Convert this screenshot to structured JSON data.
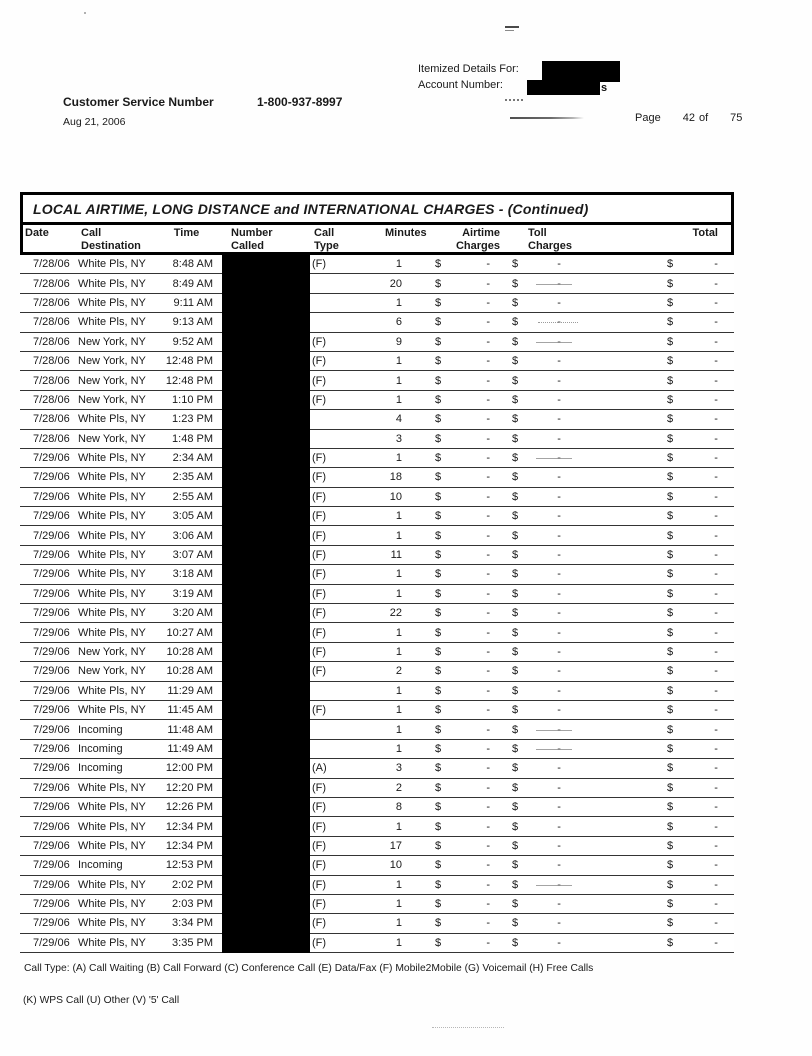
{
  "header": {
    "customer_service_label": "Customer Service Number",
    "customer_service_number": "1-800-937-8997",
    "statement_date": "Aug 21, 2006",
    "itemized_details_label": "Itemized Details For:",
    "account_number_label": "Account Number:",
    "redaction_overflow": "s",
    "page_label": "Page",
    "page_number": "42",
    "of_label": "of",
    "page_total": "75"
  },
  "table": {
    "title": "LOCAL AIRTIME, LONG DISTANCE and INTERNATIONAL CHARGES  - (Continued)",
    "currency_symbol": "$",
    "columns": {
      "date": "Date",
      "destination": "Call Destination",
      "time": "Time",
      "number_called": "Number Called",
      "call_type": "Call Type",
      "minutes": "Minutes",
      "airtime": "Airtime Charges",
      "toll": "Toll Charges",
      "total": "Total"
    },
    "rows": [
      {
        "date": "7/28/06",
        "destination": "White Pls, NY",
        "time": "8:48 AM",
        "call_type": "(F)",
        "minutes": 1,
        "airtime": "-",
        "toll": "-",
        "total": "-"
      },
      {
        "date": "7/28/06",
        "destination": "White Pls, NY",
        "time": "8:49 AM",
        "call_type": "",
        "minutes": 20,
        "airtime": "-",
        "toll": "-",
        "total": "-"
      },
      {
        "date": "7/28/06",
        "destination": "White Pls, NY",
        "time": "9:11 AM",
        "call_type": "",
        "minutes": 1,
        "airtime": "-",
        "toll": "-",
        "total": "-"
      },
      {
        "date": "7/28/06",
        "destination": "White Pls, NY",
        "time": "9:13 AM",
        "call_type": "",
        "minutes": 6,
        "airtime": "-",
        "toll": "-",
        "total": "-"
      },
      {
        "date": "7/28/06",
        "destination": "New York, NY",
        "time": "9:52 AM",
        "call_type": "(F)",
        "minutes": 9,
        "airtime": "-",
        "toll": "-",
        "total": "-"
      },
      {
        "date": "7/28/06",
        "destination": "New York, NY",
        "time": "12:48 PM",
        "call_type": "(F)",
        "minutes": 1,
        "airtime": "-",
        "toll": "-",
        "total": "-"
      },
      {
        "date": "7/28/06",
        "destination": "New York, NY",
        "time": "12:48 PM",
        "call_type": "(F)",
        "minutes": 1,
        "airtime": "-",
        "toll": "-",
        "total": "-"
      },
      {
        "date": "7/28/06",
        "destination": "New York, NY",
        "time": "1:10 PM",
        "call_type": "(F)",
        "minutes": 1,
        "airtime": "-",
        "toll": "-",
        "total": "-"
      },
      {
        "date": "7/28/06",
        "destination": "White Pls, NY",
        "time": "1:23 PM",
        "call_type": "",
        "minutes": 4,
        "airtime": "-",
        "toll": "-",
        "total": "-"
      },
      {
        "date": "7/28/06",
        "destination": "New York, NY",
        "time": "1:48 PM",
        "call_type": "",
        "minutes": 3,
        "airtime": "-",
        "toll": "-",
        "total": "-"
      },
      {
        "date": "7/29/06",
        "destination": "White Pls, NY",
        "time": "2:34 AM",
        "call_type": "(F)",
        "minutes": 1,
        "airtime": "-",
        "toll": "-",
        "total": "-"
      },
      {
        "date": "7/29/06",
        "destination": "White Pls, NY",
        "time": "2:35 AM",
        "call_type": "(F)",
        "minutes": 18,
        "airtime": "-",
        "toll": "-",
        "total": "-"
      },
      {
        "date": "7/29/06",
        "destination": "White Pls, NY",
        "time": "2:55 AM",
        "call_type": "(F)",
        "minutes": 10,
        "airtime": "-",
        "toll": "-",
        "total": "-"
      },
      {
        "date": "7/29/06",
        "destination": "White Pls, NY",
        "time": "3:05 AM",
        "call_type": "(F)",
        "minutes": 1,
        "airtime": "-",
        "toll": "-",
        "total": "-"
      },
      {
        "date": "7/29/06",
        "destination": "White Pls, NY",
        "time": "3:06 AM",
        "call_type": "(F)",
        "minutes": 1,
        "airtime": "-",
        "toll": "-",
        "total": "-"
      },
      {
        "date": "7/29/06",
        "destination": "White Pls, NY",
        "time": "3:07 AM",
        "call_type": "(F)",
        "minutes": 11,
        "airtime": "-",
        "toll": "-",
        "total": "-"
      },
      {
        "date": "7/29/06",
        "destination": "White Pls, NY",
        "time": "3:18 AM",
        "call_type": "(F)",
        "minutes": 1,
        "airtime": "-",
        "toll": "-",
        "total": "-"
      },
      {
        "date": "7/29/06",
        "destination": "White Pls, NY",
        "time": "3:19 AM",
        "call_type": "(F)",
        "minutes": 1,
        "airtime": "-",
        "toll": "-",
        "total": "-"
      },
      {
        "date": "7/29/06",
        "destination": "White Pls, NY",
        "time": "3:20 AM",
        "call_type": "(F)",
        "minutes": 22,
        "airtime": "-",
        "toll": "-",
        "total": "-"
      },
      {
        "date": "7/29/06",
        "destination": "White Pls, NY",
        "time": "10:27 AM",
        "call_type": "(F)",
        "minutes": 1,
        "airtime": "-",
        "toll": "-",
        "total": "-"
      },
      {
        "date": "7/29/06",
        "destination": "New York, NY",
        "time": "10:28 AM",
        "call_type": "(F)",
        "minutes": 1,
        "airtime": "-",
        "toll": "-",
        "total": "-"
      },
      {
        "date": "7/29/06",
        "destination": "New York, NY",
        "time": "10:28 AM",
        "call_type": "(F)",
        "minutes": 2,
        "airtime": "-",
        "toll": "-",
        "total": "-"
      },
      {
        "date": "7/29/06",
        "destination": "White Pls, NY",
        "time": "11:29 AM",
        "call_type": "",
        "minutes": 1,
        "airtime": "-",
        "toll": "-",
        "total": "-"
      },
      {
        "date": "7/29/06",
        "destination": "White Pls, NY",
        "time": "11:45 AM",
        "call_type": "(F)",
        "minutes": 1,
        "airtime": "-",
        "toll": "-",
        "total": "-"
      },
      {
        "date": "7/29/06",
        "destination": "Incoming",
        "time": "11:48 AM",
        "call_type": "",
        "minutes": 1,
        "airtime": "-",
        "toll": "-",
        "total": "-"
      },
      {
        "date": "7/29/06",
        "destination": "Incoming",
        "time": "11:49 AM",
        "call_type": "",
        "minutes": 1,
        "airtime": "-",
        "toll": "-",
        "total": "-"
      },
      {
        "date": "7/29/06",
        "destination": "Incoming",
        "time": "12:00 PM",
        "call_type": "(A)",
        "minutes": 3,
        "airtime": "-",
        "toll": "-",
        "total": "-"
      },
      {
        "date": "7/29/06",
        "destination": "White Pls, NY",
        "time": "12:20 PM",
        "call_type": "(F)",
        "minutes": 2,
        "airtime": "-",
        "toll": "-",
        "total": "-"
      },
      {
        "date": "7/29/06",
        "destination": "White Pls, NY",
        "time": "12:26 PM",
        "call_type": "(F)",
        "minutes": 8,
        "airtime": "-",
        "toll": "-",
        "total": "-"
      },
      {
        "date": "7/29/06",
        "destination": "White Pls, NY",
        "time": "12:34 PM",
        "call_type": "(F)",
        "minutes": 1,
        "airtime": "-",
        "toll": "-",
        "total": "-"
      },
      {
        "date": "7/29/06",
        "destination": "White Pls, NY",
        "time": "12:34 PM",
        "call_type": "(F)",
        "minutes": 17,
        "airtime": "-",
        "toll": "-",
        "total": "-"
      },
      {
        "date": "7/29/06",
        "destination": "Incoming",
        "time": "12:53 PM",
        "call_type": "(F)",
        "minutes": 10,
        "airtime": "-",
        "toll": "-",
        "total": "-"
      },
      {
        "date": "7/29/06",
        "destination": "White Pls, NY",
        "time": "2:02 PM",
        "call_type": "(F)",
        "minutes": 1,
        "airtime": "-",
        "toll": "-",
        "total": "-"
      },
      {
        "date": "7/29/06",
        "destination": "White Pls, NY",
        "time": "2:03 PM",
        "call_type": "(F)",
        "minutes": 1,
        "airtime": "-",
        "toll": "-",
        "total": "-"
      },
      {
        "date": "7/29/06",
        "destination": "White Pls, NY",
        "time": "3:34 PM",
        "call_type": "(F)",
        "minutes": 1,
        "airtime": "-",
        "toll": "-",
        "total": "-"
      },
      {
        "date": "7/29/06",
        "destination": "White Pls, NY",
        "time": "3:35 PM",
        "call_type": "(F)",
        "minutes": 1,
        "airtime": "-",
        "toll": "-",
        "total": "-"
      }
    ]
  },
  "footnotes": {
    "line1": "Call Type: (A) Call Waiting (B) Call Forward (C) Conference Call (E) Data/Fax (F) Mobile2Mobile (G) Voicemail (H) Free Calls",
    "line2": "(K) WPS Call (U) Other (V) '5' Call"
  }
}
